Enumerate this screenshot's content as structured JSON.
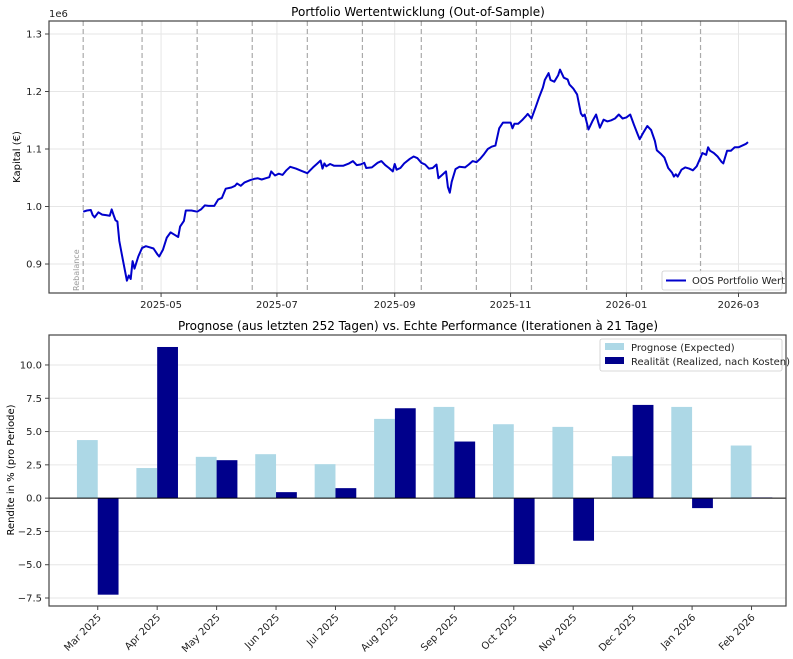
{
  "chart_data": [
    {
      "type": "line",
      "title": "Portfolio Wertentwicklung (Out-of-Sample)",
      "xlabel": "",
      "ylabel": "Kapital (€)",
      "y_offset_label": "1e6",
      "y_scale": 1000000,
      "xlim": [
        "2025-03-03",
        "2026-03-26"
      ],
      "ylim": [
        0.8496,
        1.3226
      ],
      "x_ticks": [
        "2025-05",
        "2025-07",
        "2025-09",
        "2025-11",
        "2026-01",
        "2026-03"
      ],
      "x_tick_dates": [
        "2025-05-01",
        "2025-07-01",
        "2025-09-01",
        "2025-11-01",
        "2026-01-01",
        "2026-03-01"
      ],
      "y_ticks": [
        0.9,
        1.0,
        1.1,
        1.2,
        1.3
      ],
      "y_tick_labels": [
        "0.9",
        "1.0",
        "1.1",
        "1.2",
        "1.3"
      ],
      "grid": true,
      "legend": {
        "placement": "lower-right",
        "entries": [
          "OOS Portfolio Wert"
        ]
      },
      "annotation": "Rebalance",
      "rebalance_dates": [
        "2025-03-21",
        "2025-04-21",
        "2025-05-20",
        "2025-06-18",
        "2025-07-17",
        "2025-08-15",
        "2025-09-15",
        "2025-10-14",
        "2025-11-12",
        "2025-12-11",
        "2026-01-09",
        "2026-02-09"
      ],
      "series": [
        {
          "name": "OOS Portfolio Wert",
          "color": "#0000cc",
          "points": [
            [
              "2025-03-21",
              0.991
            ],
            [
              "2025-03-23",
              0.993
            ],
            [
              "2025-03-25",
              0.994
            ],
            [
              "2025-03-26",
              0.985
            ],
            [
              "2025-03-27",
              0.981
            ],
            [
              "2025-03-29",
              0.99
            ],
            [
              "2025-03-31",
              0.986
            ],
            [
              "2025-04-02",
              0.985
            ],
            [
              "2025-04-04",
              0.984
            ],
            [
              "2025-04-05",
              0.995
            ],
            [
              "2025-04-06",
              0.985
            ],
            [
              "2025-04-07",
              0.976
            ],
            [
              "2025-04-08",
              0.974
            ],
            [
              "2025-04-09",
              0.94
            ],
            [
              "2025-04-11",
              0.905
            ],
            [
              "2025-04-13",
              0.871
            ],
            [
              "2025-04-14",
              0.88
            ],
            [
              "2025-04-15",
              0.874
            ],
            [
              "2025-04-16",
              0.905
            ],
            [
              "2025-04-17",
              0.892
            ],
            [
              "2025-04-19",
              0.913
            ],
            [
              "2025-04-21",
              0.928
            ],
            [
              "2025-04-23",
              0.931
            ],
            [
              "2025-04-25",
              0.929
            ],
            [
              "2025-04-27",
              0.927
            ],
            [
              "2025-04-29",
              0.917
            ],
            [
              "2025-04-30",
              0.913
            ],
            [
              "2025-05-02",
              0.925
            ],
            [
              "2025-05-04",
              0.946
            ],
            [
              "2025-05-06",
              0.955
            ],
            [
              "2025-05-08",
              0.951
            ],
            [
              "2025-05-10",
              0.947
            ],
            [
              "2025-05-11",
              0.965
            ],
            [
              "2025-05-13",
              0.975
            ],
            [
              "2025-05-14",
              0.993
            ],
            [
              "2025-05-17",
              0.993
            ],
            [
              "2025-05-20",
              0.991
            ],
            [
              "2025-05-22",
              0.995
            ],
            [
              "2025-05-24",
              1.002
            ],
            [
              "2025-05-26",
              1.001
            ],
            [
              "2025-05-29",
              1.001
            ],
            [
              "2025-05-31",
              1.012
            ],
            [
              "2025-06-02",
              1.015
            ],
            [
              "2025-06-04",
              1.031
            ],
            [
              "2025-06-07",
              1.033
            ],
            [
              "2025-06-09",
              1.036
            ],
            [
              "2025-06-10",
              1.04
            ],
            [
              "2025-06-12",
              1.036
            ],
            [
              "2025-06-14",
              1.042
            ],
            [
              "2025-06-17",
              1.046
            ],
            [
              "2025-06-19",
              1.048
            ],
            [
              "2025-06-21",
              1.049
            ],
            [
              "2025-06-23",
              1.047
            ],
            [
              "2025-06-25",
              1.049
            ],
            [
              "2025-06-27",
              1.051
            ],
            [
              "2025-06-28",
              1.061
            ],
            [
              "2025-06-30",
              1.054
            ],
            [
              "2025-07-02",
              1.057
            ],
            [
              "2025-07-04",
              1.055
            ],
            [
              "2025-07-06",
              1.063
            ],
            [
              "2025-07-08",
              1.069
            ],
            [
              "2025-07-11",
              1.066
            ],
            [
              "2025-07-14",
              1.062
            ],
            [
              "2025-07-17",
              1.058
            ],
            [
              "2025-07-20",
              1.068
            ],
            [
              "2025-07-22",
              1.074
            ],
            [
              "2025-07-24",
              1.08
            ],
            [
              "2025-07-25",
              1.066
            ],
            [
              "2025-07-26",
              1.075
            ],
            [
              "2025-07-27",
              1.07
            ],
            [
              "2025-07-29",
              1.074
            ],
            [
              "2025-07-31",
              1.071
            ],
            [
              "2025-08-02",
              1.071
            ],
            [
              "2025-08-05",
              1.071
            ],
            [
              "2025-08-08",
              1.075
            ],
            [
              "2025-08-10",
              1.079
            ],
            [
              "2025-08-12",
              1.072
            ],
            [
              "2025-08-14",
              1.073
            ],
            [
              "2025-08-16",
              1.076
            ],
            [
              "2025-08-17",
              1.067
            ],
            [
              "2025-08-20",
              1.068
            ],
            [
              "2025-08-23",
              1.076
            ],
            [
              "2025-08-25",
              1.079
            ],
            [
              "2025-08-27",
              1.072
            ],
            [
              "2025-08-29",
              1.067
            ],
            [
              "2025-08-31",
              1.061
            ],
            [
              "2025-09-01",
              1.074
            ],
            [
              "2025-09-02",
              1.064
            ],
            [
              "2025-09-04",
              1.067
            ],
            [
              "2025-09-06",
              1.075
            ],
            [
              "2025-09-09",
              1.083
            ],
            [
              "2025-09-11",
              1.087
            ],
            [
              "2025-09-13",
              1.084
            ],
            [
              "2025-09-15",
              1.076
            ],
            [
              "2025-09-17",
              1.073
            ],
            [
              "2025-09-19",
              1.066
            ],
            [
              "2025-09-21",
              1.067
            ],
            [
              "2025-09-23",
              1.073
            ],
            [
              "2025-09-24",
              1.049
            ],
            [
              "2025-09-26",
              1.055
            ],
            [
              "2025-09-28",
              1.061
            ],
            [
              "2025-09-29",
              1.034
            ],
            [
              "2025-09-30",
              1.024
            ],
            [
              "2025-10-01",
              1.043
            ],
            [
              "2025-10-03",
              1.065
            ],
            [
              "2025-10-05",
              1.069
            ],
            [
              "2025-10-08",
              1.068
            ],
            [
              "2025-10-10",
              1.073
            ],
            [
              "2025-10-12",
              1.079
            ],
            [
              "2025-10-14",
              1.077
            ],
            [
              "2025-10-16",
              1.083
            ],
            [
              "2025-10-18",
              1.091
            ],
            [
              "2025-10-20",
              1.1
            ],
            [
              "2025-10-22",
              1.104
            ],
            [
              "2025-10-24",
              1.106
            ],
            [
              "2025-10-26",
              1.136
            ],
            [
              "2025-10-28",
              1.146
            ],
            [
              "2025-10-30",
              1.146
            ],
            [
              "2025-11-01",
              1.146
            ],
            [
              "2025-11-02",
              1.136
            ],
            [
              "2025-11-03",
              1.144
            ],
            [
              "2025-11-05",
              1.144
            ],
            [
              "2025-11-07",
              1.15
            ],
            [
              "2025-11-09",
              1.157
            ],
            [
              "2025-11-10",
              1.161
            ],
            [
              "2025-11-12",
              1.153
            ],
            [
              "2025-11-14",
              1.171
            ],
            [
              "2025-11-16",
              1.19
            ],
            [
              "2025-11-18",
              1.207
            ],
            [
              "2025-11-19",
              1.22
            ],
            [
              "2025-11-21",
              1.232
            ],
            [
              "2025-11-22",
              1.22
            ],
            [
              "2025-11-24",
              1.217
            ],
            [
              "2025-11-26",
              1.228
            ],
            [
              "2025-11-27",
              1.238
            ],
            [
              "2025-11-29",
              1.224
            ],
            [
              "2025-12-01",
              1.221
            ],
            [
              "2025-12-02",
              1.212
            ],
            [
              "2025-12-04",
              1.205
            ],
            [
              "2025-12-06",
              1.195
            ],
            [
              "2025-12-08",
              1.162
            ],
            [
              "2025-12-09",
              1.157
            ],
            [
              "2025-12-10",
              1.16
            ],
            [
              "2025-12-11",
              1.147
            ],
            [
              "2025-12-12",
              1.134
            ],
            [
              "2025-12-14",
              1.148
            ],
            [
              "2025-12-16",
              1.16
            ],
            [
              "2025-12-17",
              1.148
            ],
            [
              "2025-12-18",
              1.137
            ],
            [
              "2025-12-20",
              1.151
            ],
            [
              "2025-12-22",
              1.148
            ],
            [
              "2025-12-24",
              1.15
            ],
            [
              "2025-12-26",
              1.153
            ],
            [
              "2025-12-28",
              1.16
            ],
            [
              "2025-12-30",
              1.153
            ],
            [
              "2026-01-01",
              1.155
            ],
            [
              "2026-01-03",
              1.16
            ],
            [
              "2026-01-05",
              1.142
            ],
            [
              "2026-01-07",
              1.125
            ],
            [
              "2026-01-08",
              1.117
            ],
            [
              "2026-01-10",
              1.129
            ],
            [
              "2026-01-12",
              1.14
            ],
            [
              "2026-01-14",
              1.133
            ],
            [
              "2026-01-16",
              1.114
            ],
            [
              "2026-01-17",
              1.098
            ],
            [
              "2026-01-19",
              1.092
            ],
            [
              "2026-01-21",
              1.085
            ],
            [
              "2026-01-23",
              1.067
            ],
            [
              "2026-01-25",
              1.059
            ],
            [
              "2026-01-26",
              1.052
            ],
            [
              "2026-01-27",
              1.056
            ],
            [
              "2026-01-28",
              1.052
            ],
            [
              "2026-01-30",
              1.064
            ],
            [
              "2026-02-01",
              1.068
            ],
            [
              "2026-02-03",
              1.066
            ],
            [
              "2026-02-05",
              1.063
            ],
            [
              "2026-02-07",
              1.07
            ],
            [
              "2026-02-09",
              1.085
            ],
            [
              "2026-02-10",
              1.093
            ],
            [
              "2026-02-12",
              1.09
            ],
            [
              "2026-02-13",
              1.103
            ],
            [
              "2026-02-14",
              1.097
            ],
            [
              "2026-02-16",
              1.093
            ],
            [
              "2026-02-18",
              1.087
            ],
            [
              "2026-02-20",
              1.078
            ],
            [
              "2026-02-21",
              1.075
            ],
            [
              "2026-02-23",
              1.097
            ],
            [
              "2026-02-25",
              1.097
            ],
            [
              "2026-02-27",
              1.103
            ],
            [
              "2026-03-01",
              1.103
            ],
            [
              "2026-03-03",
              1.106
            ],
            [
              "2026-03-05",
              1.109
            ],
            [
              "2026-03-06",
              1.112
            ]
          ]
        }
      ]
    },
    {
      "type": "bar",
      "title": "Prognose (aus letzten 252 Tagen) vs. Echte Performance (Iterationen à 21 Tage)",
      "xlabel": "",
      "ylabel": "Rendite in % (pro Periode)",
      "categories": [
        "Mar 2025",
        "Apr 2025",
        "May 2025",
        "Jun 2025",
        "Jul 2025",
        "Aug 2025",
        "Sep 2025",
        "Oct 2025",
        "Nov 2025",
        "Dec 2025",
        "Jan 2026",
        "Feb 2026"
      ],
      "ylim": [
        -8.1,
        12.25
      ],
      "y_ticks": [
        -7.5,
        -5.0,
        -2.5,
        0.0,
        2.5,
        5.0,
        7.5,
        10.0
      ],
      "y_tick_labels": [
        "−7.5",
        "−5.0",
        "−2.5",
        "0.0",
        "2.5",
        "5.0",
        "7.5",
        "10.0"
      ],
      "grid": true,
      "legend": {
        "placement": "top-right"
      },
      "series": [
        {
          "name": "Prognose (Expected)",
          "color": "#add8e6",
          "values": [
            4.36,
            2.26,
            3.1,
            3.3,
            2.55,
            5.95,
            6.85,
            5.55,
            5.35,
            3.15,
            6.85,
            3.95
          ]
        },
        {
          "name": "Realität (Realized, nach Kosten)",
          "color": "#00008b",
          "values": [
            -7.25,
            11.35,
            2.85,
            0.45,
            0.75,
            6.75,
            4.25,
            -4.95,
            -3.2,
            7.0,
            -0.75,
            0.05
          ]
        }
      ]
    }
  ]
}
